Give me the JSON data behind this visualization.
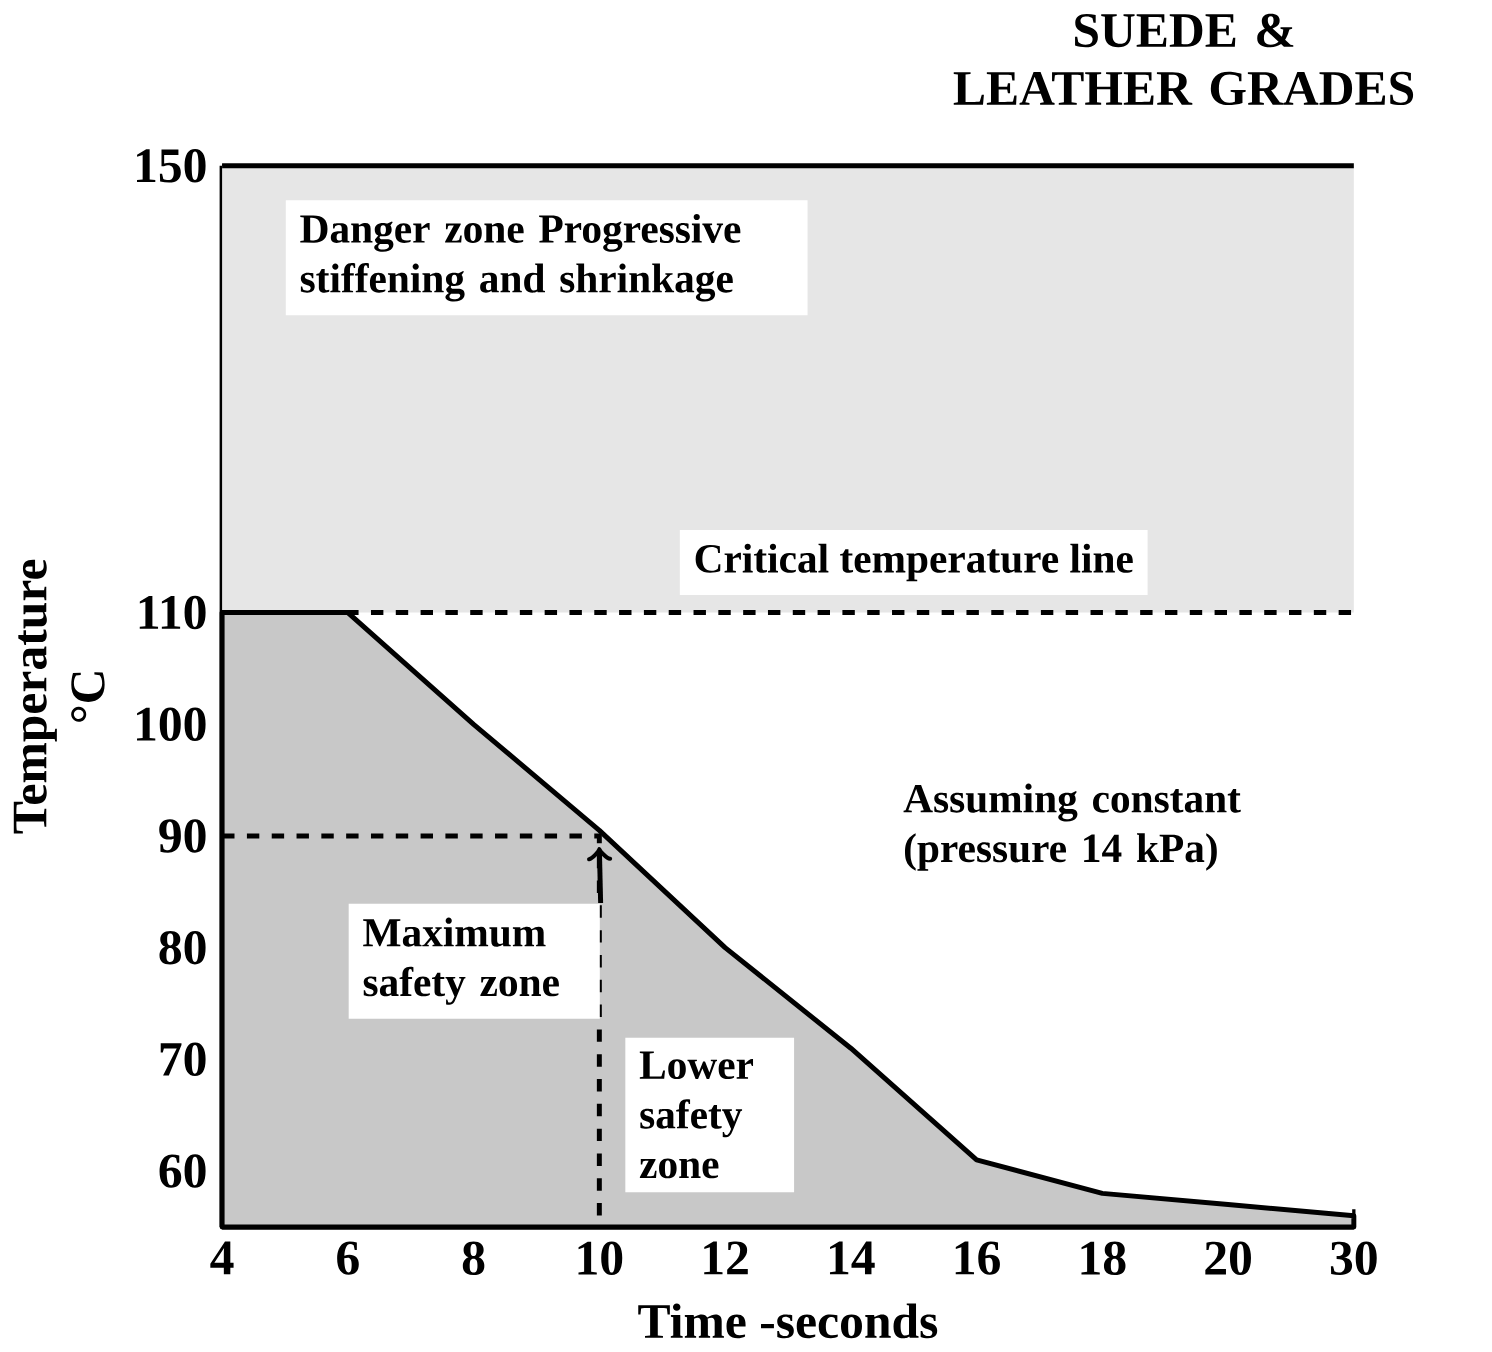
{
  "chart_data": {
    "type": "area",
    "title": "SUEDE & LEATHER GRADES",
    "xlabel": "Time -seconds",
    "ylabel": "Temperature °C",
    "categories": [
      "4",
      "6",
      "8",
      "10",
      "12",
      "14",
      "16",
      "18",
      "20",
      "30"
    ],
    "series": [
      {
        "color": "#c8c8c8",
        "values": [
          110,
          110,
          100,
          90.5,
          80,
          71,
          61,
          58,
          57,
          56
        ]
      },
      {
        "type": "line",
        "line_style": "dashed",
        "color": "#000000",
        "x": [
          "4",
          "10",
          "10"
        ],
        "values": [
          90,
          90,
          55
        ]
      }
    ],
    "ylim": [
      55,
      150
    ],
    "yticks": [
      60,
      70,
      80,
      90,
      100,
      110,
      150
    ],
    "bands": [
      {
        "axis": "y",
        "from": 110,
        "to": 150,
        "label": "Danger zone Progressive stiffening and shrinkage",
        "color": "#e6e6e6"
      }
    ],
    "ref_lines": [
      {
        "axis": "y",
        "value": 110,
        "label": "Critical temperature line",
        "line_style": "dashed"
      }
    ],
    "annotations": [
      "Assuming constant (pressure 14 kPa)",
      {
        "text": "Maximum safety zone",
        "x": "10",
        "y": 89
      },
      "Lower safety zone"
    ]
  }
}
